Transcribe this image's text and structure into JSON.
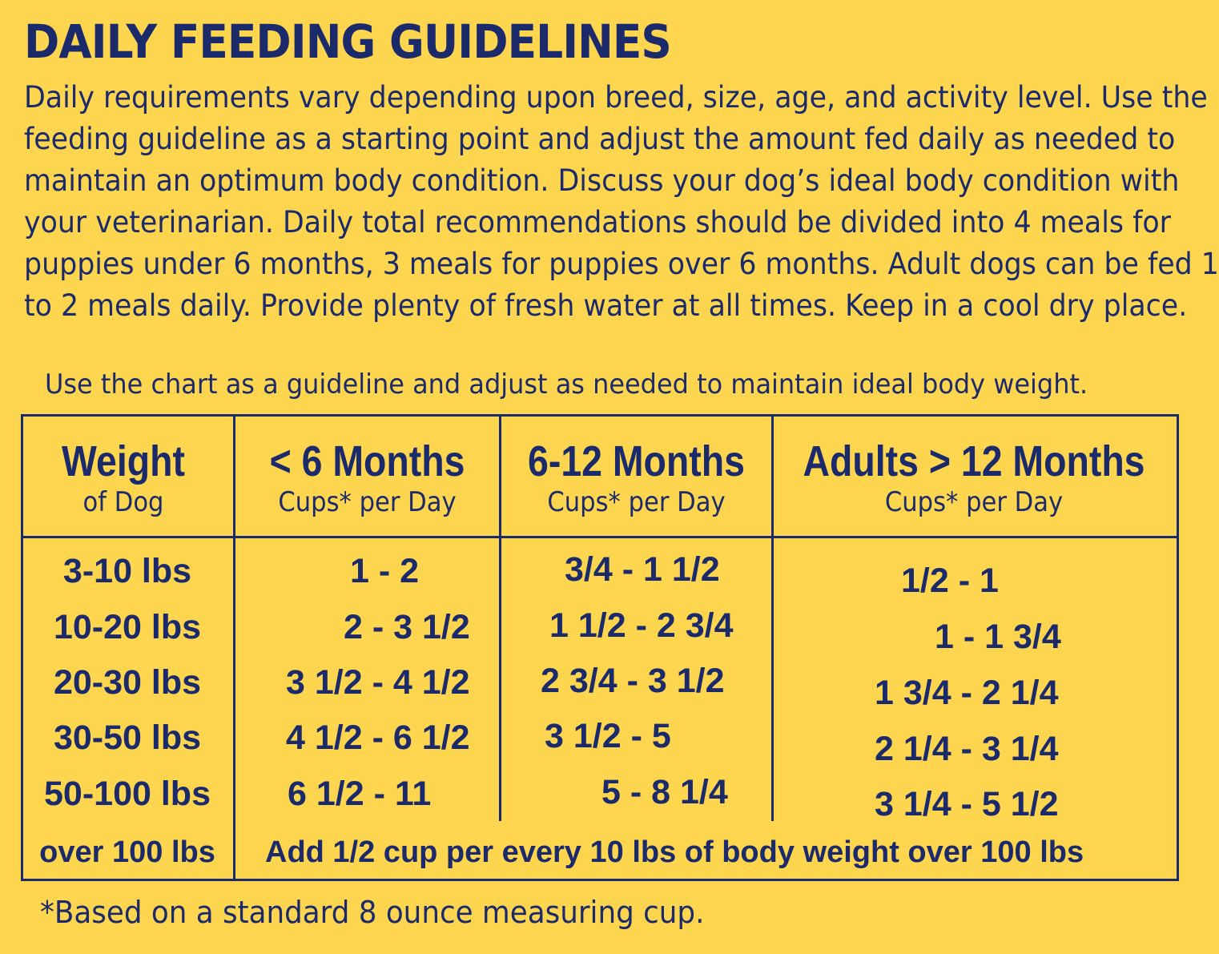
{
  "title": "DAILY FEEDING GUIDELINES",
  "intro_lines": [
    "Daily requirements vary depending upon breed, size, age, and activity level. Use the",
    "feeding guideline as a starting point and adjust the amount fed daily as needed to",
    "maintain an optimum body condition. Discuss your dog’s ideal body condition with",
    "your veterinarian. Daily total recommendations should be divided into 4 meals for",
    "puppies under 6 months, 3 meals for puppies over 6 months. Adult dogs can be fed 1",
    "to 2 meals daily. Provide plenty of fresh water at all times. Keep in a cool dry place."
  ],
  "chart_note": "Use the chart as a guideline and adjust as needed to maintain ideal body weight.",
  "table": {
    "headers": [
      {
        "title": "Weight",
        "subtitle": "of Dog"
      },
      {
        "title": "< 6 Months",
        "subtitle": "Cups* per Day"
      },
      {
        "title": "6-12 Months",
        "subtitle": "Cups* per Day"
      },
      {
        "title": "Adults > 12 Months",
        "subtitle": "Cups* per Day"
      }
    ],
    "rows": [
      {
        "weight": "3-10 lbs",
        "under6": "1 - 2",
        "m6to12": "3/4 - 1 1/2",
        "adult": "1/2 - 1"
      },
      {
        "weight": "10-20 lbs",
        "under6": "2 - 3 1/2",
        "m6to12": "1 1/2 - 2 3/4",
        "adult": "1 - 1 3/4"
      },
      {
        "weight": "20-30 lbs",
        "under6": "3 1/2 - 4 1/2",
        "m6to12": "2 3/4 - 3 1/2",
        "adult": "1 3/4 - 2 1/4"
      },
      {
        "weight": "30-50 lbs",
        "under6": "4 1/2 - 6 1/2",
        "m6to12": "3 1/2 - 5",
        "adult": "2 1/4 - 3 1/4"
      },
      {
        "weight": "50-100 lbs",
        "under6": "6 1/2 - 11",
        "m6to12": "5 - 8 1/4",
        "adult": "3 1/4 - 5 1/2"
      }
    ],
    "last_row": {
      "weight": "over 100 lbs",
      "note": "Add 1/2 cup per every 10 lbs of body weight over 100 lbs"
    }
  },
  "footnote": "*Based on a standard 8 ounce measuring cup.",
  "colors": {
    "background": "#fdd54f",
    "text": "#1b2a6b"
  }
}
